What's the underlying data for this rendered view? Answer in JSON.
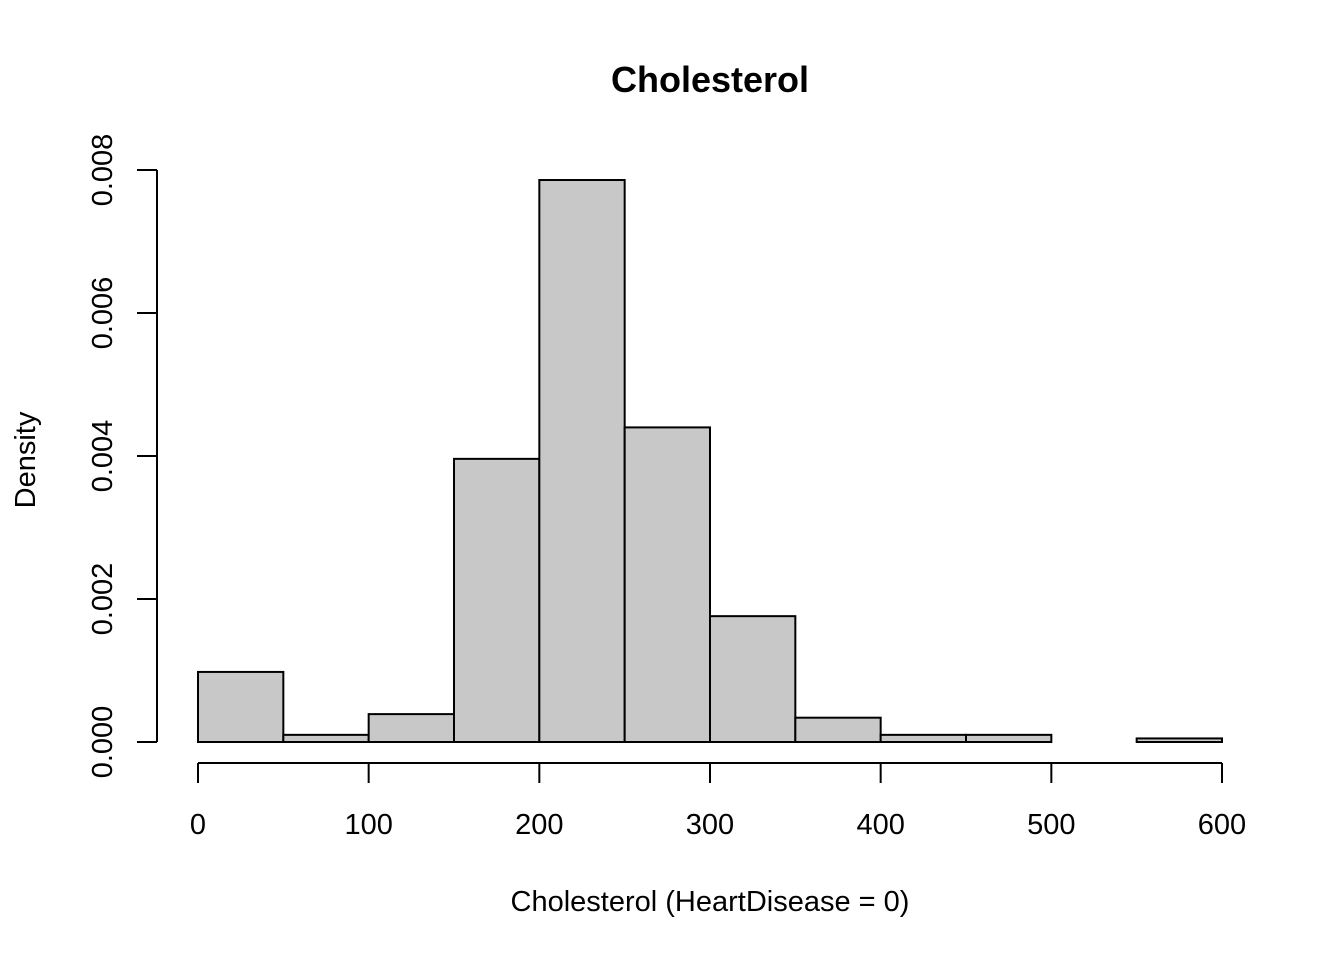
{
  "chart_data": {
    "type": "bar",
    "title": "Cholesterol",
    "xlabel": "Cholesterol (HeartDisease = 0)",
    "ylabel": "Density",
    "xlim": [
      0,
      600
    ],
    "ylim": [
      0,
      0.008
    ],
    "bins": [
      {
        "start": 0,
        "end": 50,
        "density": 0.00098
      },
      {
        "start": 50,
        "end": 100,
        "density": 0.0001
      },
      {
        "start": 100,
        "end": 150,
        "density": 0.00039
      },
      {
        "start": 150,
        "end": 200,
        "density": 0.00396
      },
      {
        "start": 200,
        "end": 250,
        "density": 0.00786
      },
      {
        "start": 250,
        "end": 300,
        "density": 0.0044
      },
      {
        "start": 300,
        "end": 350,
        "density": 0.00176
      },
      {
        "start": 350,
        "end": 400,
        "density": 0.00034
      },
      {
        "start": 400,
        "end": 450,
        "density": 0.0001
      },
      {
        "start": 450,
        "end": 500,
        "density": 0.0001
      },
      {
        "start": 500,
        "end": 550,
        "density": 0.0
      },
      {
        "start": 550,
        "end": 600,
        "density": 5e-05
      }
    ],
    "x_ticks": [
      0,
      100,
      200,
      300,
      400,
      500,
      600
    ],
    "y_ticks": [
      "0.000",
      "0.002",
      "0.004",
      "0.006",
      "0.008"
    ],
    "grid": false
  }
}
